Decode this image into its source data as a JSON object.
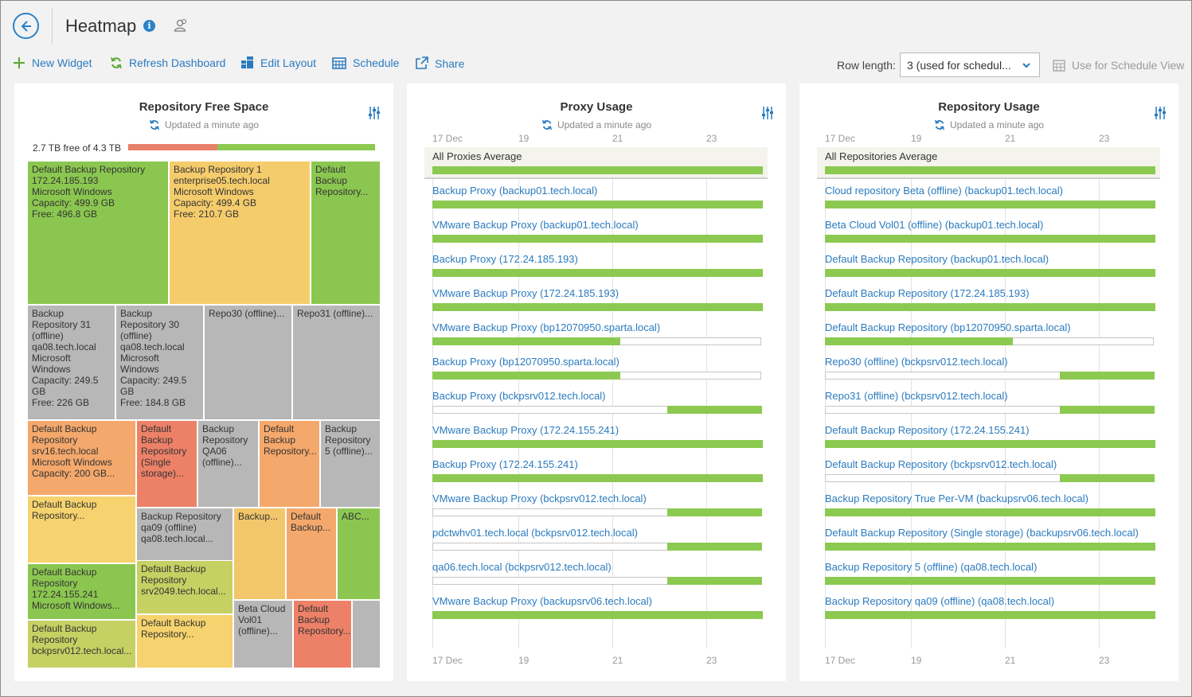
{
  "header": {
    "title": "Heatmap",
    "info_glyph": "i"
  },
  "toolbar": {
    "new_widget": "New Widget",
    "refresh_dashboard": "Refresh Dashboard",
    "edit_layout": "Edit Layout",
    "schedule": "Schedule",
    "share": "Share",
    "row_length_label": "Row length:",
    "row_length_value": "3 (used for schedul...",
    "use_for_schedule_view": "Use for Schedule View"
  },
  "colors": {
    "accent": "#2a7bbf",
    "green": "#8bc750",
    "yellow": "#f5cc6c",
    "gray": "#b7b7b7",
    "orange": "#f4a86b",
    "red": "#ed8168",
    "lime": "#c7d063"
  },
  "repo_free_space": {
    "title": "Repository Free Space",
    "updated": "Updated a minute ago",
    "summary": "2.7 TB free of 4.3 TB",
    "used_fraction": 0.36,
    "cells": [
      {
        "id": 0,
        "color": "green",
        "text": "Default Backup Repository\n172.24.185.193\nMicrosoft Windows\nCapacity: 499.9 GB\nFree: 496.8 GB"
      },
      {
        "id": 1,
        "color": "yellow",
        "text": "Backup Repository 1\nenterprise05.tech.local\nMicrosoft Windows\nCapacity: 499.4 GB\nFree: 210.7 GB"
      },
      {
        "id": 2,
        "color": "green",
        "text": "Default\nBackup\nRepository..."
      },
      {
        "id": 3,
        "color": "gray",
        "text": "Backup\nRepository 31\n(offline)\nqa08.tech.local\nMicrosoft\nWindows\nCapacity: 249.5\nGB\nFree: 226 GB"
      },
      {
        "id": 4,
        "color": "gray",
        "text": "Backup\nRepository 30\n(offline)\nqa08.tech.local\nMicrosoft\nWindows\nCapacity: 249.5\nGB\nFree: 184.8 GB"
      },
      {
        "id": 5,
        "color": "gray",
        "text": "Repo30 (offline)..."
      },
      {
        "id": 6,
        "color": "gray",
        "text": "Repo31 (offline)..."
      },
      {
        "id": 7,
        "color": "orange",
        "text": "Default Backup\nRepository\nsrv16.tech.local\nMicrosoft Windows\nCapacity: 200 GB..."
      },
      {
        "id": 8,
        "color": "red",
        "text": "Default\nBackup\nRepository\n(Single\nstorage)..."
      },
      {
        "id": 9,
        "color": "gray",
        "text": "Backup\nRepository\nQA06\n(offline)..."
      },
      {
        "id": 10,
        "color": "orange",
        "text": "Default\nBackup\nRepository..."
      },
      {
        "id": 11,
        "color": "gray",
        "text": "Backup\nRepository\n5 (offline)..."
      },
      {
        "id": 12,
        "color": "lyellow",
        "text": "Default Backup\nRepository..."
      },
      {
        "id": 13,
        "color": "gray",
        "text": "Backup Repository\nqa09 (offline)\nqa08.tech.local..."
      },
      {
        "id": 14,
        "color": "ylw2",
        "text": "Backup..."
      },
      {
        "id": 15,
        "color": "orange",
        "text": "Default\nBackup..."
      },
      {
        "id": 16,
        "color": "green",
        "text": "ABC..."
      },
      {
        "id": 17,
        "color": "green",
        "text": "Default Backup\nRepository\n172.24.155.241\nMicrosoft Windows..."
      },
      {
        "id": 18,
        "color": "lime",
        "text": "Default Backup\nRepository\nsrv2049.tech.local..."
      },
      {
        "id": 19,
        "color": "lime",
        "text": "Default Backup\nRepository\nbckpsrv012.tech.local..."
      },
      {
        "id": 20,
        "color": "lyellow",
        "text": "Default Backup\nRepository..."
      },
      {
        "id": 21,
        "color": "gray",
        "text": "Beta Cloud\nVol01\n(offline)..."
      },
      {
        "id": 22,
        "color": "red",
        "text": "Default\nBackup\nRepository..."
      },
      {
        "id": 23,
        "color": "gray",
        "text": ""
      }
    ]
  },
  "proxy_usage": {
    "title": "Proxy Usage",
    "updated": "Updated a minute ago",
    "ticks": [
      "17 Dec",
      "19",
      "21",
      "23"
    ],
    "average_label": "All Proxies Average",
    "average_fill": [
      0.0,
      1.0
    ],
    "rows": [
      {
        "label": "Backup Proxy (backup01.tech.local)",
        "fill": [
          0.0,
          1.0
        ]
      },
      {
        "label": "VMware Backup Proxy (backup01.tech.local)",
        "fill": [
          0.0,
          1.0
        ]
      },
      {
        "label": "Backup Proxy (172.24.185.193)",
        "fill": [
          0.0,
          1.0
        ]
      },
      {
        "label": "VMware Backup Proxy (172.24.185.193)",
        "fill": [
          0.0,
          1.0
        ]
      },
      {
        "label": "VMware Backup Proxy (bp12070950.sparta.local)",
        "fill": [
          0.0,
          0.57
        ]
      },
      {
        "label": "Backup Proxy (bp12070950.sparta.local)",
        "fill": [
          0.0,
          0.57
        ]
      },
      {
        "label": "Backup Proxy (bckpsrv012.tech.local)",
        "fill": [
          0.715,
          1.0
        ]
      },
      {
        "label": "VMware Backup Proxy (172.24.155.241)",
        "fill": [
          0.0,
          1.0
        ]
      },
      {
        "label": "Backup Proxy (172.24.155.241)",
        "fill": [
          0.0,
          1.0
        ]
      },
      {
        "label": "VMware Backup Proxy (bckpsrv012.tech.local)",
        "fill": [
          0.715,
          1.0
        ]
      },
      {
        "label": "pdctwhv01.tech.local (bckpsrv012.tech.local)",
        "fill": [
          0.715,
          1.0
        ]
      },
      {
        "label": "qa06.tech.local (bckpsrv012.tech.local)",
        "fill": [
          0.715,
          1.0
        ]
      },
      {
        "label": "VMware Backup Proxy (backupsrv06.tech.local)",
        "fill": [
          0.0,
          1.0
        ]
      }
    ]
  },
  "repo_usage": {
    "title": "Repository Usage",
    "updated": "Updated a minute ago",
    "ticks": [
      "17 Dec",
      "19",
      "21",
      "23"
    ],
    "average_label": "All Repositories Average",
    "average_fill": [
      0.0,
      1.0
    ],
    "rows": [
      {
        "label": "Cloud repository Beta (offline) (backup01.tech.local)",
        "fill": [
          0.0,
          1.0
        ]
      },
      {
        "label": "Beta Cloud Vol01 (offline) (backup01.tech.local)",
        "fill": [
          0.0,
          1.0
        ]
      },
      {
        "label": "Default Backup Repository (backup01.tech.local)",
        "fill": [
          0.0,
          1.0
        ]
      },
      {
        "label": "Default Backup Repository (172.24.185.193)",
        "fill": [
          0.0,
          1.0
        ]
      },
      {
        "label": "Default Backup Repository (bp12070950.sparta.local)",
        "fill": [
          0.0,
          0.57
        ]
      },
      {
        "label": "Repo30 (offline) (bckpsrv012.tech.local)",
        "fill": [
          0.715,
          1.0
        ]
      },
      {
        "label": "Repo31 (offline) (bckpsrv012.tech.local)",
        "fill": [
          0.715,
          1.0
        ]
      },
      {
        "label": "Default Backup Repository (172.24.155.241)",
        "fill": [
          0.0,
          1.0
        ]
      },
      {
        "label": "Default Backup Repository (bckpsrv012.tech.local)",
        "fill": [
          0.715,
          1.0
        ]
      },
      {
        "label": "Backup Repository True Per-VM (backupsrv06.tech.local)",
        "fill": [
          0.0,
          1.0
        ]
      },
      {
        "label": "Default Backup Repository (Single storage) (backupsrv06.tech.local)",
        "fill": [
          0.0,
          1.0
        ]
      },
      {
        "label": "Backup Repository 5 (offline) (qa08.tech.local)",
        "fill": [
          0.0,
          1.0
        ]
      },
      {
        "label": "Backup Repository qa09 (offline) (qa08.tech.local)",
        "fill": [
          0.0,
          1.0
        ]
      }
    ]
  }
}
